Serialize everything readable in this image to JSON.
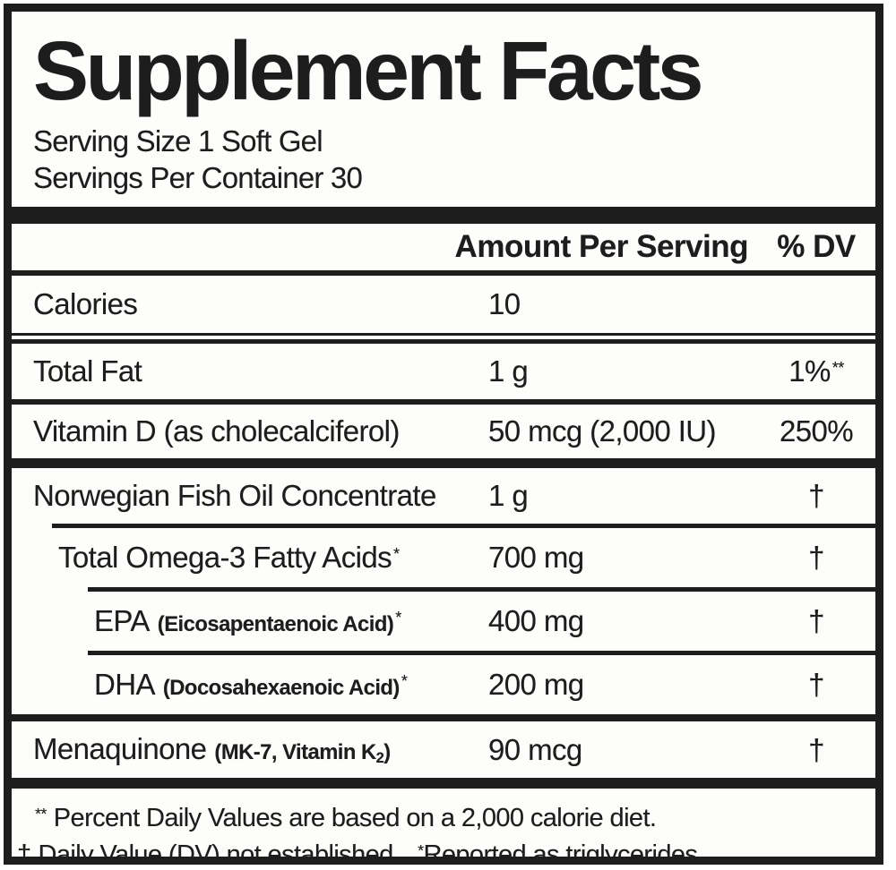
{
  "title": "Supplement Facts",
  "serving": {
    "size": "Serving Size 1 Soft Gel",
    "per_container": "Servings Per Container 30"
  },
  "header": {
    "amount": "Amount Per Serving",
    "dv": "% DV"
  },
  "rows": [
    {
      "name": "Calories",
      "amount": "10",
      "dv": ""
    },
    {
      "name": "Total Fat",
      "amount": "1 g",
      "dv": "1%",
      "dv_sup": "**"
    },
    {
      "name": "Vitamin D (as cholecalciferol)",
      "amount": "50 mcg (2,000 IU)",
      "dv": "250%"
    },
    {
      "name": "Norwegian Fish Oil Concentrate",
      "amount": "1 g",
      "dv": "†"
    },
    {
      "name": "Total Omega-3 Fatty Acids",
      "name_sup": "*",
      "amount": "700 mg",
      "dv": "†"
    },
    {
      "name": "EPA",
      "paren_pre": "(Eicosapentaenoic Acid)",
      "name_sup": "*",
      "amount": "400 mg",
      "dv": "†"
    },
    {
      "name": "DHA",
      "paren_pre": "(Docosahexaenoic Acid)",
      "name_sup": "*",
      "amount": "200 mg",
      "dv": "†"
    },
    {
      "name": "Menaquinone",
      "paren_pre": "(MK-7, Vitamin K",
      "paren_sub": "2",
      "paren_post": ")",
      "amount": "90 mcg",
      "dv": "†"
    }
  ],
  "footnotes": {
    "line1_marker": "**",
    "line1_text": "Percent Daily Values are based on a 2,000 calorie diet.",
    "line2_dagger": "†",
    "line2_text": "Daily Value (DV) not established.",
    "line2_marker": "*",
    "line2_text2": "Reported as triglycerides."
  },
  "colors": {
    "ink": "#1d1d1d",
    "paper": "#fdfdfc"
  }
}
